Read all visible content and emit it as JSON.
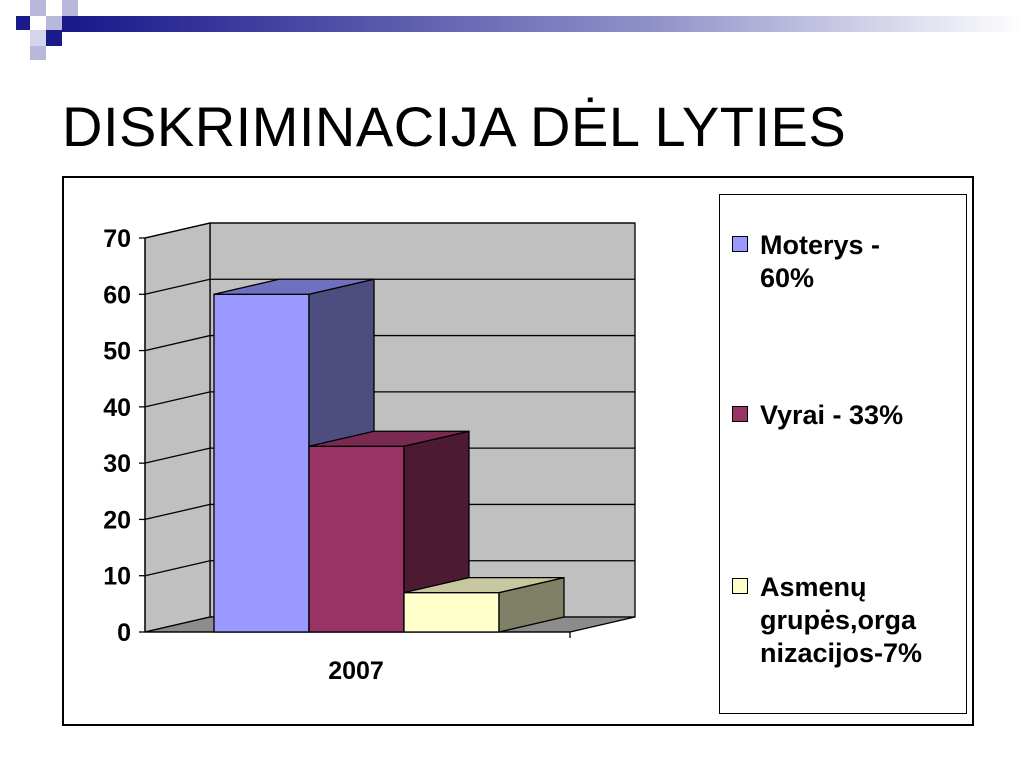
{
  "slide": {
    "title": "DISKRIMINACIJA DĖL LYTIES"
  },
  "colors": {
    "deco_dark": "#1a1a8c",
    "deco_light": "#9b9bd0",
    "wall": "#c0c0c0",
    "floor": "#8c8c8c",
    "moterys": "#9999ff",
    "vyrai": "#993366",
    "asmenu": "#ffffcc"
  },
  "chart_data": {
    "type": "bar",
    "categories": [
      "2007"
    ],
    "series": [
      {
        "name": "Moterys - 60%",
        "values": [
          60
        ],
        "color": "#9999ff",
        "side": "#4d4d80",
        "top": "#7070c0"
      },
      {
        "name": "Vyrai - 33%",
        "values": [
          33
        ],
        "color": "#993366",
        "side": "#4d1a33",
        "top": "#7a2952"
      },
      {
        "name": "Asmenų grupės,organizacijos-7%",
        "values": [
          7
        ],
        "color": "#ffffcc",
        "side": "#808066",
        "top": "#c8c8a0"
      }
    ],
    "yticks": [
      "0",
      "10",
      "20",
      "30",
      "40",
      "50",
      "60",
      "70"
    ],
    "ylim": [
      0,
      70
    ],
    "grid": true,
    "legend_position": "right",
    "style": "3d-column"
  },
  "legend": {
    "items": [
      {
        "label": "Moterys -\n60%"
      },
      {
        "label": "Vyrai - 33%"
      },
      {
        "label": "Asmenų\ngrupės,orga\nnizacijos-7%"
      }
    ]
  }
}
